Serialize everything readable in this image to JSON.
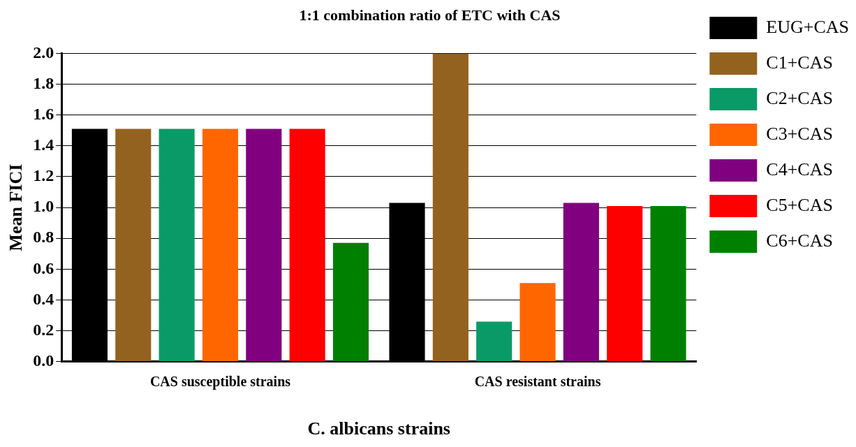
{
  "chart_data": {
    "type": "bar",
    "title": "1:1 combination ratio of ETC with CAS",
    "xlabel": "C. albicans strains",
    "ylabel": "Mean FICI",
    "categories": [
      "CAS susceptible strains",
      "CAS resistant strains"
    ],
    "series": [
      {
        "name": "EUG+CAS",
        "color": "#000000",
        "values": [
          1.51,
          1.03
        ]
      },
      {
        "name": "C1+CAS",
        "color": "#94621f",
        "values": [
          1.51,
          2.0
        ]
      },
      {
        "name": "C2+CAS",
        "color": "#0a9a68",
        "values": [
          1.51,
          0.26
        ]
      },
      {
        "name": "C3+CAS",
        "color": "#ff6600",
        "values": [
          1.51,
          0.51
        ]
      },
      {
        "name": "C4+CAS",
        "color": "#800080",
        "values": [
          1.51,
          1.03
        ]
      },
      {
        "name": "C5+CAS",
        "color": "#ff0000",
        "values": [
          1.51,
          1.01
        ]
      },
      {
        "name": "C6+CAS",
        "color": "#008000",
        "values": [
          0.77,
          1.01
        ]
      }
    ],
    "ylim": [
      0,
      2
    ],
    "yticks": [
      {
        "value": 0,
        "label": "0.0"
      },
      {
        "value": 0.2,
        "label": "0.2"
      },
      {
        "value": 0.4,
        "label": "0.4"
      },
      {
        "value": 0.6,
        "label": "0.6"
      },
      {
        "value": 0.8,
        "label": "0.8"
      },
      {
        "value": 1,
        "label": "1.0"
      },
      {
        "value": 1.2,
        "label": "1.2"
      },
      {
        "value": 1.4,
        "label": "1.4"
      },
      {
        "value": 1.6,
        "label": "1.6"
      },
      {
        "value": 1.8,
        "label": "1.8"
      },
      {
        "value": 2,
        "label": "2.0"
      }
    ],
    "grid": "y",
    "legend": "right"
  }
}
